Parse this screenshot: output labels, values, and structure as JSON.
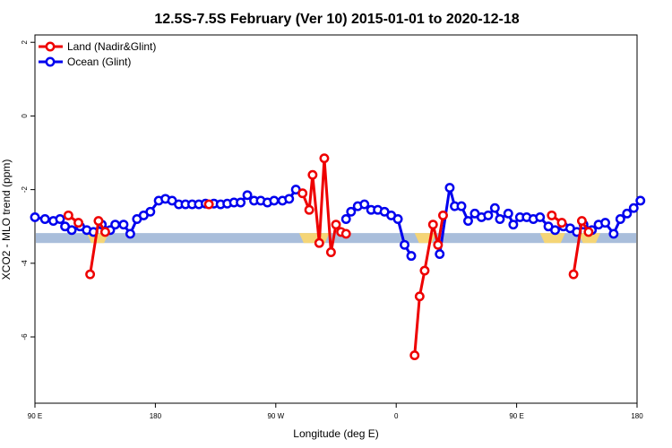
{
  "chart_data": {
    "type": "line",
    "title": "12.5S-7.5S February (Ver 10)   2015-01-01 to 2020-12-18",
    "xlabel": "Longitude (deg E)",
    "ylabel": "XCO2 - MLO trend (ppm)",
    "xlim": [
      90,
      450
    ],
    "ylim": [
      -7.8,
      2.2
    ],
    "x_ticks": [
      {
        "value": 90,
        "label": "90 E"
      },
      {
        "value": 162,
        "label": "180"
      },
      {
        "value": 234,
        "label": "90 W"
      },
      {
        "value": 306,
        "label": "0"
      },
      {
        "value": 378,
        "label": "90 E"
      },
      {
        "value": 450,
        "label": "180"
      }
    ],
    "y_ticks": [
      {
        "value": 2,
        "label": "2"
      },
      {
        "value": 0,
        "label": "0"
      },
      {
        "value": -2,
        "label": "-2"
      },
      {
        "value": -4,
        "label": "-4"
      },
      {
        "value": -6,
        "label": "-6"
      }
    ],
    "grid": false,
    "legend_position": "top-left",
    "land_band": {
      "y_range": [
        -3.45,
        -3.18
      ],
      "ocean_color": "#a9bedb",
      "land_color": "#f5d576",
      "land_segments": [
        [
          248,
          266
        ],
        [
          317,
          330
        ],
        [
          392,
          407
        ],
        [
          415,
          428
        ],
        [
          121,
          134
        ]
      ]
    },
    "series": [
      {
        "name": "Land (Nadir&Glint)",
        "color": "#ee0000",
        "segments": [
          [
            [
              110,
              -2.7
            ],
            [
              116,
              -2.9
            ]
          ],
          [
            [
              123,
              -4.3
            ],
            [
              128,
              -2.85
            ],
            [
              132,
              -3.15
            ]
          ],
          [
            [
              194,
              -2.4
            ]
          ],
          [
            [
              250,
              -2.1
            ],
            [
              254,
              -2.55
            ],
            [
              256,
              -1.6
            ],
            [
              260,
              -3.45
            ],
            [
              263,
              -1.15
            ],
            [
              267,
              -3.7
            ],
            [
              270,
              -2.95
            ],
            [
              273,
              -3.15
            ],
            [
              276,
              -3.2
            ]
          ],
          [
            [
              317,
              -6.5
            ],
            [
              320,
              -4.9
            ],
            [
              323,
              -4.2
            ],
            [
              328,
              -2.95
            ],
            [
              331,
              -3.5
            ],
            [
              334,
              -2.7
            ]
          ],
          [
            [
              399,
              -2.7
            ],
            [
              405,
              -2.9
            ]
          ],
          [
            [
              412,
              -4.3
            ],
            [
              417,
              -2.85
            ],
            [
              421,
              -3.15
            ]
          ]
        ]
      },
      {
        "name": "Ocean (Glint)",
        "color": "#0000ee",
        "segments": [
          [
            [
              90,
              -2.75
            ],
            [
              96,
              -2.8
            ],
            [
              101,
              -2.85
            ],
            [
              105,
              -2.8
            ],
            [
              108,
              -3.0
            ],
            [
              112,
              -3.1
            ],
            [
              117,
              -3.0
            ],
            [
              121,
              -3.1
            ],
            [
              125,
              -3.15
            ],
            [
              130,
              -2.95
            ],
            [
              135,
              -3.1
            ],
            [
              138,
              -2.95
            ],
            [
              143,
              -2.95
            ],
            [
              147,
              -3.2
            ],
            [
              151,
              -2.8
            ],
            [
              155,
              -2.7
            ],
            [
              159,
              -2.6
            ],
            [
              164,
              -2.3
            ],
            [
              168,
              -2.25
            ],
            [
              172,
              -2.3
            ],
            [
              176,
              -2.4
            ],
            [
              180,
              -2.4
            ],
            [
              184,
              -2.4
            ],
            [
              188,
              -2.4
            ],
            [
              192,
              -2.38
            ],
            [
              197,
              -2.38
            ],
            [
              201,
              -2.4
            ],
            [
              205,
              -2.38
            ],
            [
              209,
              -2.35
            ],
            [
              213,
              -2.35
            ],
            [
              217,
              -2.15
            ],
            [
              221,
              -2.3
            ],
            [
              225,
              -2.3
            ],
            [
              229,
              -2.35
            ],
            [
              233,
              -2.3
            ],
            [
              238,
              -2.3
            ],
            [
              242,
              -2.25
            ],
            [
              246,
              -2.0
            ]
          ],
          [
            [
              276,
              -2.8
            ],
            [
              279,
              -2.6
            ],
            [
              283,
              -2.45
            ],
            [
              287,
              -2.4
            ],
            [
              291,
              -2.55
            ],
            [
              295,
              -2.55
            ],
            [
              299,
              -2.6
            ],
            [
              303,
              -2.7
            ],
            [
              307,
              -2.8
            ],
            [
              311,
              -3.5
            ],
            [
              315,
              -3.8
            ]
          ],
          [
            [
              332,
              -3.75
            ],
            [
              338,
              -1.95
            ],
            [
              341,
              -2.45
            ],
            [
              345,
              -2.45
            ],
            [
              349,
              -2.85
            ],
            [
              353,
              -2.65
            ],
            [
              357,
              -2.75
            ],
            [
              361,
              -2.7
            ],
            [
              365,
              -2.5
            ],
            [
              368,
              -2.8
            ],
            [
              373,
              -2.65
            ],
            [
              376,
              -2.95
            ],
            [
              380,
              -2.75
            ],
            [
              384,
              -2.75
            ],
            [
              388,
              -2.8
            ],
            [
              392,
              -2.75
            ],
            [
              397,
              -3.0
            ],
            [
              401,
              -3.1
            ],
            [
              406,
              -3.0
            ],
            [
              410,
              -3.05
            ],
            [
              414,
              -3.15
            ],
            [
              418,
              -2.95
            ],
            [
              423,
              -3.1
            ],
            [
              427,
              -2.95
            ],
            [
              431,
              -2.9
            ],
            [
              436,
              -3.2
            ],
            [
              440,
              -2.8
            ],
            [
              444,
              -2.65
            ],
            [
              448,
              -2.5
            ],
            [
              452,
              -2.3
            ]
          ]
        ]
      }
    ]
  }
}
